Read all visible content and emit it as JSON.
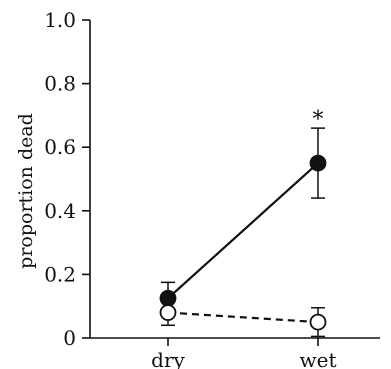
{
  "chart_data": {
    "type": "line",
    "categories": [
      "dry",
      "wet"
    ],
    "ylabel": "proportion dead",
    "xlabel": "",
    "ylim": [
      0,
      1.0
    ],
    "yticks": [
      0,
      0.2,
      0.4,
      0.6,
      0.8,
      1.0
    ],
    "ytick_labels": [
      "0",
      "0.2",
      "0.4",
      "0.6",
      "0.8",
      "1.0"
    ],
    "grid": false,
    "series": [
      {
        "marker": "filled-circle",
        "line_style": "solid",
        "color": "#111111",
        "values": [
          0.125,
          0.55
        ],
        "error": [
          0.05,
          0.11
        ]
      },
      {
        "marker": "open-circle",
        "line_style": "dashed",
        "color": "#111111",
        "values": [
          0.08,
          0.05
        ],
        "error": [
          0.04,
          0.045
        ]
      }
    ],
    "annotations": [
      {
        "text": "*",
        "category": "wet",
        "y": 0.69
      }
    ]
  }
}
